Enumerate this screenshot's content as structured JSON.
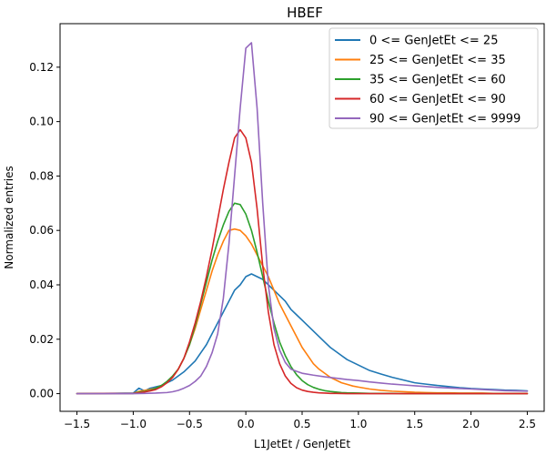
{
  "chart_data": {
    "type": "line",
    "title": "HBEF",
    "xlabel": "L1JetEt / GenJetEt",
    "ylabel": "Normalized entries",
    "xlim": [
      -1.65,
      2.65
    ],
    "ylim": [
      -0.0065,
      0.136
    ],
    "xticks": [
      -1.5,
      -1.0,
      -0.5,
      0.0,
      0.5,
      1.0,
      1.5,
      2.0,
      2.5
    ],
    "xtick_labels": [
      "−1.5",
      "−1.0",
      "−0.5",
      "0.0",
      "0.5",
      "1.0",
      "1.5",
      "2.0",
      "2.5"
    ],
    "yticks": [
      0.0,
      0.02,
      0.04,
      0.06,
      0.08,
      0.1,
      0.12
    ],
    "ytick_labels": [
      "0.00",
      "0.02",
      "0.04",
      "0.06",
      "0.08",
      "0.10",
      "0.12"
    ],
    "grid": false,
    "legend_position": "top-right",
    "series": [
      {
        "name": "0 <= GenJetEt <= 25",
        "color": "#1f77b4",
        "x": [
          -1.5,
          -1.0,
          -0.95,
          -0.9,
          -0.85,
          -0.8,
          -0.75,
          -0.7,
          -0.65,
          -0.6,
          -0.55,
          -0.5,
          -0.45,
          -0.4,
          -0.35,
          -0.3,
          -0.25,
          -0.2,
          -0.15,
          -0.1,
          -0.05,
          0.0,
          0.05,
          0.1,
          0.15,
          0.2,
          0.25,
          0.3,
          0.35,
          0.4,
          0.45,
          0.5,
          0.55,
          0.6,
          0.65,
          0.7,
          0.75,
          0.8,
          0.85,
          0.9,
          0.95,
          1.0,
          1.1,
          1.2,
          1.3,
          1.4,
          1.5,
          1.6,
          1.7,
          1.8,
          1.9,
          2.0,
          2.1,
          2.2,
          2.3,
          2.4,
          2.5
        ],
        "y": [
          0.0,
          0.0002,
          0.002,
          0.001,
          0.002,
          0.0025,
          0.003,
          0.004,
          0.005,
          0.0065,
          0.008,
          0.01,
          0.012,
          0.015,
          0.018,
          0.022,
          0.026,
          0.03,
          0.034,
          0.038,
          0.04,
          0.043,
          0.044,
          0.043,
          0.042,
          0.04,
          0.038,
          0.036,
          0.034,
          0.031,
          0.029,
          0.027,
          0.025,
          0.023,
          0.021,
          0.019,
          0.017,
          0.0155,
          0.014,
          0.0125,
          0.0115,
          0.0105,
          0.0085,
          0.0072,
          0.006,
          0.005,
          0.004,
          0.0035,
          0.003,
          0.0026,
          0.0022,
          0.0019,
          0.0017,
          0.0015,
          0.0013,
          0.0012,
          0.001
        ]
      },
      {
        "name": "25 <= GenJetEt <= 35",
        "color": "#ff7f0e",
        "x": [
          -1.5,
          -1.0,
          -0.95,
          -0.9,
          -0.85,
          -0.8,
          -0.75,
          -0.7,
          -0.65,
          -0.6,
          -0.55,
          -0.5,
          -0.45,
          -0.4,
          -0.35,
          -0.3,
          -0.25,
          -0.2,
          -0.15,
          -0.1,
          -0.05,
          0.0,
          0.05,
          0.1,
          0.15,
          0.2,
          0.25,
          0.3,
          0.35,
          0.4,
          0.45,
          0.5,
          0.55,
          0.6,
          0.65,
          0.7,
          0.75,
          0.8,
          0.85,
          0.9,
          0.95,
          1.0,
          1.1,
          1.2,
          1.3,
          1.4,
          1.5,
          1.6,
          1.7,
          1.8,
          1.9,
          2.0,
          2.1,
          2.2,
          2.3,
          2.4,
          2.5
        ],
        "y": [
          0.0,
          0.0001,
          0.0008,
          0.0012,
          0.0015,
          0.002,
          0.003,
          0.004,
          0.006,
          0.009,
          0.013,
          0.018,
          0.024,
          0.031,
          0.038,
          0.045,
          0.051,
          0.056,
          0.06,
          0.0605,
          0.06,
          0.058,
          0.055,
          0.051,
          0.047,
          0.043,
          0.038,
          0.033,
          0.029,
          0.025,
          0.021,
          0.017,
          0.014,
          0.011,
          0.009,
          0.0075,
          0.006,
          0.005,
          0.004,
          0.0034,
          0.0028,
          0.0024,
          0.0017,
          0.0012,
          0.0009,
          0.0007,
          0.0005,
          0.0004,
          0.0003,
          0.0003,
          0.0002,
          0.0002,
          0.0002,
          0.0001,
          0.0001,
          0.0001,
          0.0001
        ]
      },
      {
        "name": "35 <= GenJetEt <= 60",
        "color": "#2ca02c",
        "x": [
          -1.5,
          -1.0,
          -0.95,
          -0.9,
          -0.85,
          -0.8,
          -0.75,
          -0.7,
          -0.65,
          -0.6,
          -0.55,
          -0.5,
          -0.45,
          -0.4,
          -0.35,
          -0.3,
          -0.25,
          -0.2,
          -0.15,
          -0.1,
          -0.05,
          0.0,
          0.05,
          0.1,
          0.15,
          0.2,
          0.25,
          0.3,
          0.35,
          0.4,
          0.45,
          0.5,
          0.55,
          0.6,
          0.65,
          0.7,
          0.75,
          0.8,
          0.85,
          0.9,
          1.0,
          1.1,
          1.2,
          1.3,
          1.4,
          1.5,
          1.6,
          1.8,
          2.0,
          2.2,
          2.5
        ],
        "y": [
          0.0,
          0.0001,
          0.0005,
          0.0008,
          0.0012,
          0.002,
          0.003,
          0.0045,
          0.0065,
          0.009,
          0.013,
          0.018,
          0.025,
          0.033,
          0.041,
          0.049,
          0.056,
          0.062,
          0.067,
          0.07,
          0.0695,
          0.066,
          0.06,
          0.052,
          0.043,
          0.034,
          0.026,
          0.019,
          0.014,
          0.01,
          0.007,
          0.0048,
          0.0033,
          0.0023,
          0.0016,
          0.0011,
          0.0008,
          0.0006,
          0.0004,
          0.0003,
          0.0002,
          0.0001,
          0.0001,
          0.0001,
          0.0,
          0.0,
          0.0,
          0.0,
          0.0,
          0.0,
          0.0
        ]
      },
      {
        "name": "60 <= GenJetEt <= 90",
        "color": "#d62728",
        "x": [
          -1.5,
          -1.0,
          -0.95,
          -0.9,
          -0.85,
          -0.8,
          -0.75,
          -0.7,
          -0.65,
          -0.6,
          -0.55,
          -0.5,
          -0.45,
          -0.4,
          -0.35,
          -0.3,
          -0.25,
          -0.2,
          -0.15,
          -0.1,
          -0.05,
          0.0,
          0.05,
          0.1,
          0.15,
          0.2,
          0.25,
          0.3,
          0.35,
          0.4,
          0.45,
          0.5,
          0.55,
          0.6,
          0.65,
          0.7,
          0.75,
          0.8,
          0.9,
          1.0,
          1.2,
          1.5,
          2.0,
          2.5
        ],
        "y": [
          0.0,
          0.0001,
          0.0003,
          0.0006,
          0.001,
          0.0015,
          0.0025,
          0.004,
          0.006,
          0.009,
          0.013,
          0.019,
          0.026,
          0.034,
          0.043,
          0.053,
          0.064,
          0.075,
          0.085,
          0.094,
          0.097,
          0.094,
          0.085,
          0.068,
          0.047,
          0.03,
          0.018,
          0.011,
          0.0065,
          0.0038,
          0.0022,
          0.0013,
          0.0008,
          0.0005,
          0.0003,
          0.0002,
          0.0001,
          0.0001,
          0.0,
          0.0,
          0.0,
          0.0,
          0.0,
          0.0
        ]
      },
      {
        "name": "90 <= GenJetEt <= 9999",
        "color": "#9467bd",
        "x": [
          -1.5,
          -1.0,
          -0.9,
          -0.8,
          -0.7,
          -0.65,
          -0.6,
          -0.55,
          -0.5,
          -0.45,
          -0.4,
          -0.35,
          -0.3,
          -0.25,
          -0.2,
          -0.15,
          -0.1,
          -0.05,
          0.0,
          0.05,
          0.1,
          0.15,
          0.2,
          0.25,
          0.3,
          0.35,
          0.4,
          0.45,
          0.5,
          0.6,
          0.7,
          0.8,
          0.9,
          1.0,
          1.1,
          1.2,
          1.3,
          1.4,
          1.5,
          1.6,
          1.7,
          1.8,
          1.9,
          2.0,
          2.1,
          2.2,
          2.3,
          2.4,
          2.5
        ],
        "y": [
          0.0,
          0.0,
          0.0001,
          0.0002,
          0.0004,
          0.0007,
          0.0012,
          0.002,
          0.003,
          0.0045,
          0.0065,
          0.01,
          0.015,
          0.022,
          0.035,
          0.055,
          0.08,
          0.105,
          0.127,
          0.129,
          0.105,
          0.07,
          0.04,
          0.024,
          0.016,
          0.0115,
          0.009,
          0.0082,
          0.0075,
          0.0068,
          0.0062,
          0.0057,
          0.0052,
          0.0048,
          0.0043,
          0.0039,
          0.0035,
          0.0032,
          0.0029,
          0.0026,
          0.0023,
          0.0021,
          0.0019,
          0.0017,
          0.0015,
          0.0013,
          0.0011,
          0.001,
          0.0009
        ]
      }
    ]
  }
}
